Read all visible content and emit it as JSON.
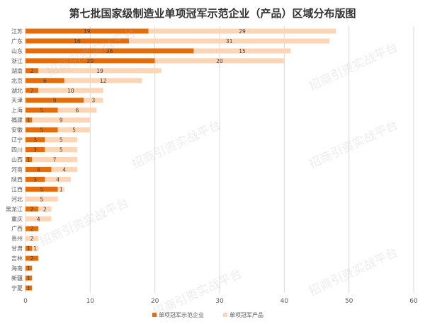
{
  "chart_data": {
    "type": "bar",
    "orientation": "horizontal",
    "stacked": true,
    "title": "第七批国家级制造业单项冠军示范企业（产品）区域分布版图",
    "categories": [
      "江苏",
      "广东",
      "山东",
      "浙江",
      "湖南",
      "北京",
      "湖北",
      "天津",
      "上海",
      "福建",
      "安徽",
      "辽宁",
      "四川",
      "山西",
      "河南",
      "陕西",
      "江西",
      "河北",
      "黑龙江",
      "重庆",
      "广西",
      "贵州",
      "甘肃",
      "吉林",
      "海南",
      "新疆",
      "宁夏"
    ],
    "series": [
      {
        "name": "单项冠军示范企业",
        "color": "#E46C0A",
        "values": [
          19,
          16,
          26,
          20,
          2,
          6,
          2,
          9,
          5,
          1,
          5,
          3,
          3,
          1,
          4,
          3,
          5,
          0,
          2,
          0,
          2,
          0,
          1,
          2,
          1,
          1,
          1
        ]
      },
      {
        "name": "单项冠军产品",
        "color": "#FBD5B5",
        "values": [
          29,
          31,
          15,
          20,
          19,
          12,
          10,
          3,
          6,
          9,
          5,
          5,
          5,
          7,
          4,
          4,
          1,
          5,
          2,
          4,
          0,
          2,
          1,
          0,
          0,
          0,
          0
        ]
      }
    ],
    "xlim": [
      0,
      60
    ],
    "xticks": [
      0,
      10,
      20,
      30,
      40,
      50,
      60
    ],
    "grid": true,
    "legend": "bottom"
  },
  "watermark": "招商引资实战平台"
}
